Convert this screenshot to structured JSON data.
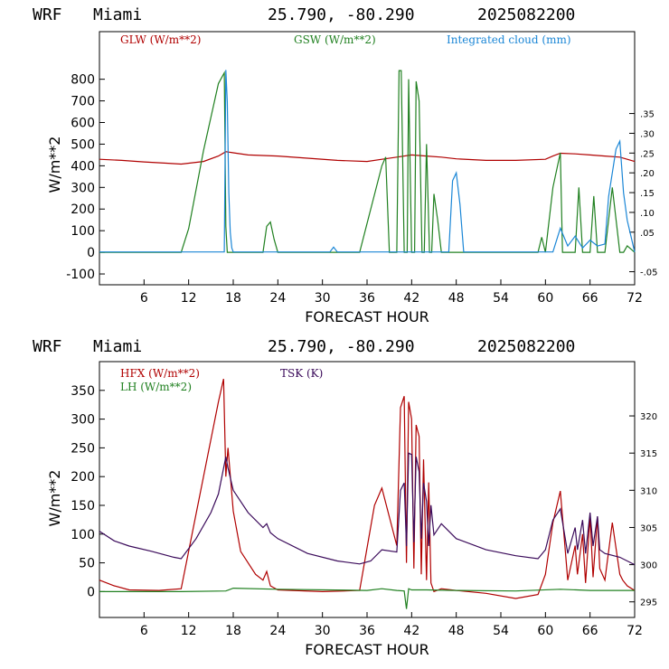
{
  "chart_data": [
    {
      "type": "line",
      "header": {
        "model": "WRF",
        "location": "Miami",
        "coords": "25.790, -80.290",
        "init": "2025082200"
      },
      "xlabel": "FORECAST HOUR",
      "ylabel": "W/m**2",
      "xlim": [
        0,
        72
      ],
      "ylim": [
        -150,
        1020
      ],
      "xticks": [
        6,
        12,
        18,
        24,
        30,
        36,
        42,
        48,
        54,
        60,
        66,
        72
      ],
      "yticks": [
        -100,
        0,
        100,
        200,
        300,
        400,
        500,
        600,
        700,
        800
      ],
      "y2lim": [
        -0.083,
        0.557
      ],
      "y2ticks": [
        -0.05,
        0.05,
        0.1,
        0.15,
        0.2,
        0.25,
        0.3,
        0.35
      ],
      "y2ticklabels": [
        "-.05",
        ".05",
        ".10",
        ".15",
        ".20",
        ".25",
        ".30",
        ".35"
      ],
      "legend": "top",
      "series": [
        {
          "name": "GLW (W/m**2)",
          "color": "#b00000",
          "axis": "left",
          "x": [
            0,
            3,
            6,
            9,
            11,
            14,
            16,
            17,
            18,
            20,
            24,
            28,
            32,
            36,
            38,
            40,
            42,
            44,
            46,
            48,
            52,
            56,
            60,
            61,
            62,
            64,
            66,
            68,
            70,
            72
          ],
          "values": [
            430,
            425,
            418,
            412,
            408,
            420,
            445,
            465,
            460,
            450,
            445,
            435,
            425,
            420,
            430,
            440,
            450,
            445,
            440,
            432,
            425,
            425,
            430,
            445,
            458,
            455,
            450,
            445,
            440,
            420
          ]
        },
        {
          "name": "GSW (W/m**2)",
          "color": "#208020",
          "axis": "left",
          "x": [
            0,
            11,
            12,
            14,
            16,
            16.8,
            17,
            17.2,
            18,
            22,
            22.5,
            23,
            23.5,
            24,
            35,
            38,
            38.5,
            39,
            40,
            40.3,
            40.6,
            41,
            41.4,
            41.6,
            42,
            42.4,
            42.6,
            43,
            43.4,
            43.7,
            44,
            44.4,
            44.7,
            45,
            45.5,
            46,
            47,
            48,
            59,
            59.5,
            60,
            61,
            62,
            62.3,
            64,
            64.5,
            65,
            66,
            66.5,
            67,
            68,
            69,
            70,
            70.5,
            71,
            72
          ],
          "values": [
            0,
            0,
            110,
            470,
            780,
            830,
            120,
            0,
            0,
            0,
            120,
            140,
            60,
            0,
            0,
            400,
            440,
            0,
            0,
            840,
            840,
            0,
            0,
            800,
            0,
            0,
            790,
            700,
            0,
            0,
            500,
            0,
            0,
            270,
            150,
            0,
            0,
            0,
            0,
            70,
            0,
            300,
            460,
            0,
            0,
            300,
            0,
            0,
            260,
            0,
            0,
            300,
            0,
            0,
            30,
            0
          ]
        },
        {
          "name": "Integrated cloud (mm)",
          "color": "#1a86d6",
          "axis": "right",
          "x": [
            0,
            16.8,
            17,
            17.2,
            17.4,
            17.6,
            17.8,
            18,
            31,
            31.5,
            32,
            47,
            47.5,
            48,
            48.5,
            49,
            61,
            62,
            63,
            64,
            65,
            66,
            67,
            68,
            68.5,
            69,
            69.5,
            70,
            70.5,
            71,
            72
          ],
          "values": [
            0,
            0,
            0.46,
            0.38,
            0.15,
            0.05,
            0.01,
            0,
            0,
            0.012,
            0,
            0,
            0.18,
            0.2,
            0.12,
            0,
            0,
            0.06,
            0.015,
            0.04,
            0.01,
            0.03,
            0.015,
            0.02,
            0.14,
            0.2,
            0.26,
            0.28,
            0.15,
            0.08,
            0
          ]
        }
      ]
    },
    {
      "type": "line",
      "header": {
        "model": "WRF",
        "location": "Miami",
        "coords": "25.790, -80.290",
        "init": "2025082200"
      },
      "xlabel": "FORECAST HOUR",
      "ylabel": "W/m**2",
      "xlim": [
        0,
        72
      ],
      "ylim": [
        -45,
        400
      ],
      "xticks": [
        6,
        12,
        18,
        24,
        30,
        36,
        42,
        48,
        54,
        60,
        66,
        72
      ],
      "yticks": [
        0,
        50,
        100,
        150,
        200,
        250,
        300,
        350
      ],
      "y2lim": [
        292.9,
        327.3
      ],
      "y2ticks": [
        295,
        300,
        305,
        310,
        315,
        320
      ],
      "legend": "top-left",
      "series": [
        {
          "name": "HFX (W/m**2)",
          "color": "#b00000",
          "axis": "left",
          "x": [
            0,
            2,
            4,
            8,
            11,
            14,
            16,
            16.7,
            17,
            17.3,
            18,
            19,
            21,
            22,
            22.5,
            23,
            24,
            30,
            35,
            37,
            38,
            40,
            40.5,
            41,
            41.3,
            41.6,
            42,
            42.3,
            42.6,
            43,
            43.3,
            43.6,
            44,
            44.3,
            44.6,
            45,
            46,
            48,
            52,
            56,
            59,
            60,
            61,
            62,
            63,
            64,
            64.3,
            65,
            65.4,
            66,
            66.4,
            67,
            67.3,
            68,
            69,
            70,
            70.4,
            71,
            72
          ],
          "values": [
            20,
            10,
            3,
            2,
            5,
            200,
            330,
            370,
            200,
            250,
            140,
            70,
            30,
            20,
            35,
            10,
            3,
            0,
            2,
            150,
            180,
            80,
            320,
            340,
            50,
            330,
            300,
            40,
            290,
            270,
            30,
            230,
            20,
            190,
            15,
            0,
            5,
            2,
            -3,
            -12,
            -5,
            30,
            120,
            175,
            20,
            80,
            30,
            100,
            15,
            130,
            25,
            130,
            40,
            20,
            120,
            30,
            20,
            10,
            2
          ]
        },
        {
          "name": "LH  (W/m**2)",
          "color": "#208020",
          "axis": "left",
          "x": [
            0,
            11,
            17,
            18,
            24,
            36,
            38,
            40,
            41,
            41.3,
            41.6,
            42,
            44,
            48,
            56,
            62,
            66,
            72
          ],
          "values": [
            0,
            0,
            1,
            6,
            4,
            2,
            5,
            2,
            1,
            -30,
            5,
            3,
            3,
            2,
            1,
            4,
            2,
            2
          ]
        },
        {
          "name": "TSK (K)",
          "color": "#3a0a5a",
          "axis": "right",
          "x": [
            0,
            2,
            4,
            7,
            10,
            11,
            13,
            15,
            16,
            17,
            17.3,
            18,
            20,
            22,
            22.5,
            23,
            24,
            28,
            32,
            35,
            36.5,
            38,
            40,
            40.5,
            41,
            41.3,
            41.6,
            42,
            42.3,
            42.6,
            43,
            43.3,
            43.6,
            44,
            44.3,
            44.6,
            45,
            46,
            48,
            52,
            56,
            59,
            60,
            61,
            62,
            63,
            64,
            64.3,
            65,
            65.4,
            66,
            66.4,
            67,
            67.3,
            68,
            70,
            72
          ],
          "values": [
            304.5,
            303.2,
            302.5,
            301.8,
            301.0,
            300.8,
            303.5,
            307.0,
            309.5,
            314.5,
            313.0,
            310.0,
            307.0,
            305.0,
            305.5,
            304.3,
            303.5,
            301.5,
            300.5,
            300.1,
            300.5,
            302.0,
            301.7,
            310.0,
            311.0,
            302.5,
            315.0,
            314.8,
            303.0,
            314.5,
            312.5,
            303.5,
            311.0,
            308.5,
            302.5,
            308.0,
            304.0,
            305.5,
            303.5,
            302.0,
            301.2,
            300.8,
            302.0,
            306.0,
            307.5,
            301.5,
            305.0,
            302.0,
            306.0,
            301.5,
            307.0,
            302.5,
            306.5,
            302.0,
            301.5,
            301.0,
            300.0
          ]
        }
      ]
    }
  ]
}
